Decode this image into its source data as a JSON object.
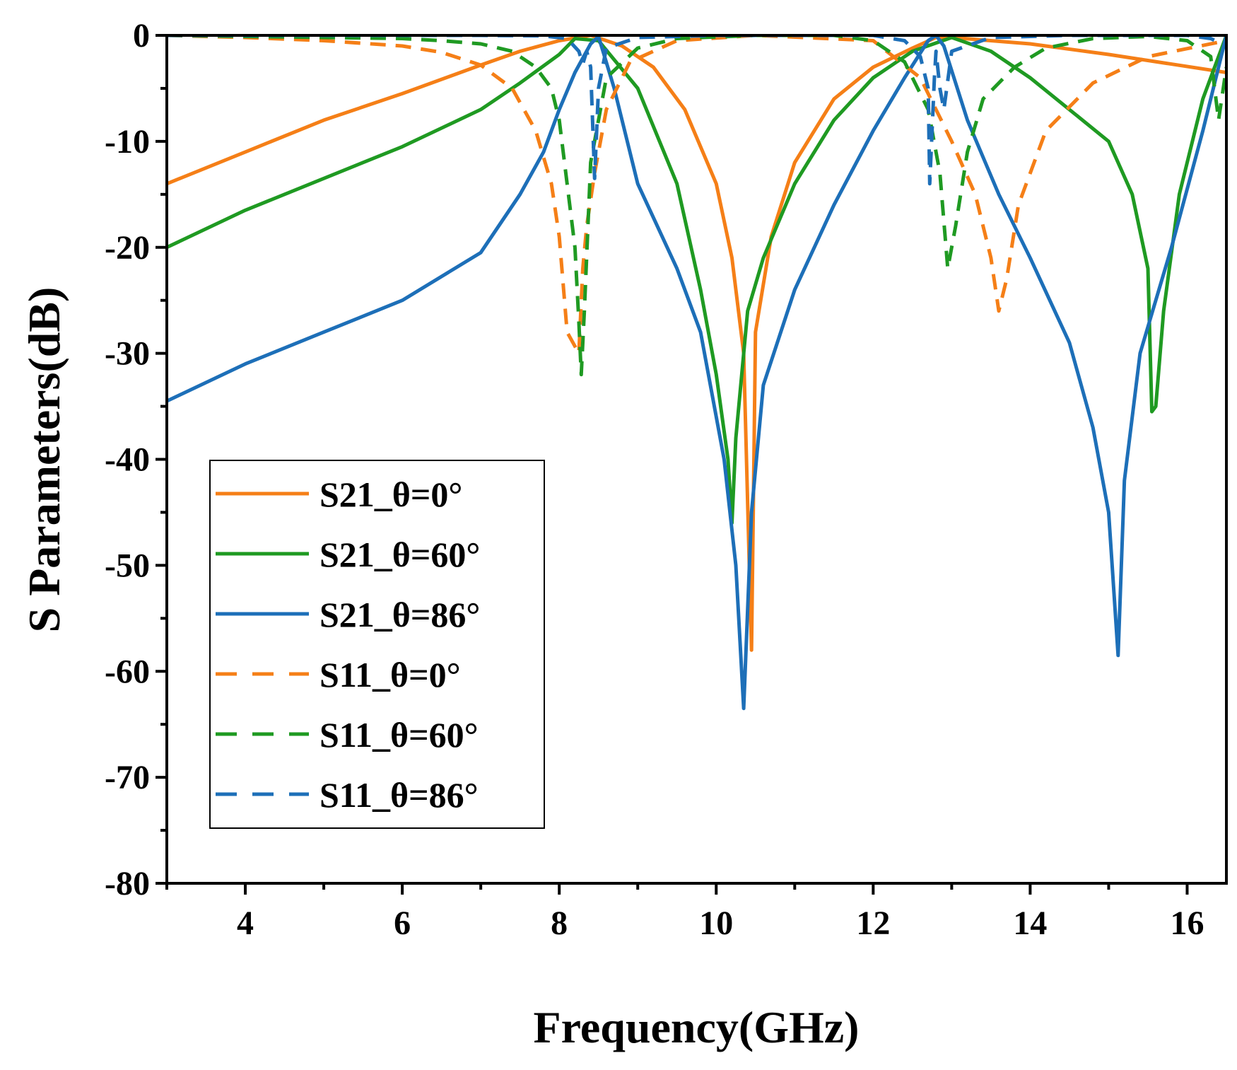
{
  "chart_data": {
    "type": "line",
    "xlabel": "Frequency(GHz)",
    "ylabel": "S Parameters(dB)",
    "xlim": [
      3,
      16.5
    ],
    "ylim": [
      -80,
      0
    ],
    "xticks": [
      4,
      6,
      8,
      10,
      12,
      14,
      16
    ],
    "yticks": [
      0,
      -10,
      -20,
      -30,
      -40,
      -50,
      -60,
      -70,
      -80
    ],
    "grid": false,
    "legend_position": "bottom-left",
    "series": [
      {
        "name": "S21_θ=0°",
        "color": "#f57f17",
        "dash": "solid",
        "x": [
          3,
          4,
          5,
          6,
          7,
          7.5,
          8,
          8.4,
          8.8,
          9.2,
          9.6,
          10.0,
          10.2,
          10.35,
          10.45,
          10.5,
          10.7,
          11.0,
          11.5,
          12.0,
          12.5,
          12.8,
          13.0,
          14,
          15,
          16.5
        ],
        "y": [
          -14,
          -11,
          -8,
          -5.5,
          -2.8,
          -1.5,
          -0.5,
          0,
          -1,
          -3,
          -7,
          -14,
          -21,
          -30,
          -58,
          -28,
          -19,
          -12,
          -6,
          -3,
          -1.2,
          -0.2,
          -0.2,
          -0.8,
          -1.8,
          -3.5
        ]
      },
      {
        "name": "S21_θ=60°",
        "color": "#1f9a22",
        "dash": "solid",
        "x": [
          3,
          4,
          5,
          6,
          7,
          7.5,
          8,
          8.2,
          8.5,
          9.0,
          9.5,
          9.8,
          10.0,
          10.15,
          10.2,
          10.25,
          10.4,
          10.6,
          11,
          11.5,
          12,
          12.5,
          13.0,
          13.5,
          14,
          14.5,
          15,
          15.3,
          15.5,
          15.55,
          15.6,
          15.7,
          15.9,
          16.2,
          16.5
        ],
        "y": [
          -20,
          -16.5,
          -13.5,
          -10.5,
          -7,
          -4.5,
          -1.8,
          -0.3,
          -0.5,
          -5,
          -14,
          -24,
          -32,
          -40,
          -46,
          -38,
          -26,
          -21,
          -14,
          -8,
          -4,
          -1.5,
          -0.2,
          -1.5,
          -4,
          -7,
          -10,
          -15,
          -22,
          -35.5,
          -35,
          -26,
          -15,
          -6,
          0
        ]
      },
      {
        "name": "S21_θ=86°",
        "color": "#1d6fb8",
        "dash": "solid",
        "x": [
          3,
          4,
          5,
          6,
          7,
          7.5,
          7.8,
          8.0,
          8.2,
          8.4,
          8.5,
          8.7,
          9.0,
          9.5,
          9.8,
          10.1,
          10.25,
          10.35,
          10.45,
          10.6,
          11.0,
          11.5,
          12.0,
          12.4,
          12.7,
          12.8,
          12.9,
          13.2,
          13.6,
          14.0,
          14.5,
          14.8,
          15.0,
          15.12,
          15.2,
          15.4,
          15.8,
          16.2,
          16.5
        ],
        "y": [
          -34.5,
          -31,
          -28,
          -25,
          -20.5,
          -15,
          -11,
          -7,
          -3.5,
          -0.8,
          -0.1,
          -5,
          -14,
          -22,
          -28,
          -40,
          -50,
          -63.5,
          -45,
          -33,
          -24,
          -16,
          -9,
          -4,
          -0.5,
          0,
          -1,
          -8,
          -15,
          -21,
          -29,
          -37,
          -45,
          -58.5,
          -42,
          -30,
          -20,
          -9,
          0
        ]
      },
      {
        "name": "S11_θ=0°",
        "color": "#f57f17",
        "dash": "dashed",
        "x": [
          3,
          4,
          5,
          6,
          6.5,
          7,
          7.4,
          7.7,
          7.9,
          8.0,
          8.1,
          8.25,
          8.3,
          8.35,
          8.45,
          8.6,
          8.9,
          9.5,
          10.5,
          12,
          12.6,
          13.0,
          13.3,
          13.5,
          13.6,
          13.7,
          13.85,
          14.2,
          14.8,
          15.5,
          16.5
        ],
        "y": [
          0,
          -0.2,
          -0.5,
          -1,
          -1.6,
          -2.8,
          -5,
          -9,
          -14,
          -19,
          -28,
          -30,
          -22,
          -18,
          -13,
          -7,
          -2.5,
          -0.5,
          0,
          -0.5,
          -4,
          -10,
          -15,
          -21,
          -26,
          -23,
          -16,
          -9,
          -4.5,
          -2,
          -0.5
        ]
      },
      {
        "name": "S11_θ=60°",
        "color": "#1f9a22",
        "dash": "dashed",
        "x": [
          3,
          4,
          5,
          6,
          6.5,
          7,
          7.4,
          7.7,
          7.9,
          8.0,
          8.1,
          8.2,
          8.25,
          8.28,
          8.32,
          8.4,
          8.6,
          9.0,
          9.5,
          10.5,
          11.5,
          12.0,
          12.4,
          12.7,
          12.85,
          12.95,
          13.05,
          13.2,
          13.4,
          13.8,
          14.2,
          14.8,
          15.5,
          16.0,
          16.3,
          16.4,
          16.5
        ],
        "y": [
          0,
          -0.1,
          -0.2,
          -0.3,
          -0.5,
          -0.8,
          -1.5,
          -3,
          -5,
          -8,
          -14,
          -20,
          -27,
          -32,
          -26,
          -12,
          -4,
          -1.2,
          -0.3,
          0,
          0,
          -0.5,
          -2.5,
          -7,
          -13,
          -22,
          -18,
          -11,
          -6,
          -3,
          -1.2,
          -0.3,
          -0.1,
          -0.5,
          -2,
          -8,
          -3
        ]
      },
      {
        "name": "S11_θ=86°",
        "color": "#1d6fb8",
        "dash": "dashed",
        "x": [
          3,
          5,
          7,
          7.8,
          8.1,
          8.25,
          8.3,
          8.35,
          8.4,
          8.45,
          8.5,
          8.6,
          9.0,
          10,
          11,
          12,
          12.4,
          12.6,
          12.7,
          12.72,
          12.75,
          12.78,
          12.8,
          12.85,
          12.9,
          13.0,
          13.5,
          14.5,
          15.5,
          16.0,
          16.3,
          16.5
        ],
        "y": [
          0,
          0,
          0,
          -0.05,
          -0.3,
          -1.5,
          -2.7,
          -1.5,
          -3,
          -13.5,
          -5,
          -1.2,
          -0.2,
          0,
          0,
          0,
          -0.5,
          -2,
          -5,
          -14,
          -9,
          -4,
          -1.5,
          -5,
          -7,
          -1.5,
          -0.2,
          0,
          0,
          0,
          -0.3,
          -1
        ]
      }
    ]
  }
}
